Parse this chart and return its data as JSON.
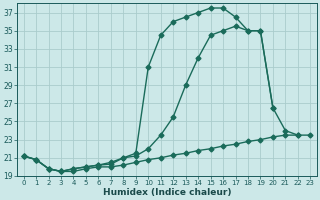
{
  "xlabel": "Humidex (Indice chaleur)",
  "bg_color": "#cce8e8",
  "grid_color": "#aacccc",
  "line_color": "#1a6b5a",
  "xlim": [
    -0.5,
    23.5
  ],
  "ylim": [
    19,
    38
  ],
  "xticks": [
    0,
    1,
    2,
    3,
    4,
    5,
    6,
    7,
    8,
    9,
    10,
    11,
    12,
    13,
    14,
    15,
    16,
    17,
    18,
    19,
    20,
    21,
    22,
    23
  ],
  "yticks": [
    19,
    21,
    23,
    25,
    27,
    29,
    31,
    33,
    35,
    37
  ],
  "curve1_x": [
    0,
    1,
    2,
    3,
    4,
    5,
    6,
    7,
    8,
    9,
    10,
    11,
    12,
    13,
    14,
    15,
    16,
    17,
    18,
    19,
    20,
    21,
    22,
    23
  ],
  "curve1_y": [
    21.2,
    20.8,
    19.8,
    19.5,
    19.5,
    19.8,
    20.0,
    20.0,
    20.2,
    20.5,
    20.8,
    21.0,
    21.3,
    21.5,
    21.8,
    22.0,
    22.3,
    22.5,
    22.8,
    23.0,
    23.3,
    23.5,
    23.5,
    23.5
  ],
  "curve2_x": [
    0,
    1,
    2,
    3,
    4,
    5,
    6,
    7,
    8,
    9,
    10,
    11,
    12,
    13,
    14,
    15,
    16,
    17,
    18,
    19,
    20,
    21,
    22,
    23
  ],
  "curve2_y": [
    21.2,
    20.8,
    19.8,
    19.5,
    19.8,
    20.0,
    20.2,
    20.3,
    21.0,
    21.2,
    22.0,
    23.5,
    25.5,
    29.0,
    32.0,
    34.5,
    35.0,
    35.5,
    35.0,
    35.0,
    26.5,
    24.0,
    23.5,
    null
  ],
  "curve3_x": [
    0,
    1,
    2,
    3,
    4,
    5,
    6,
    7,
    8,
    9,
    10,
    11,
    12,
    13,
    14,
    15,
    16,
    17,
    18,
    19,
    20
  ],
  "curve3_y": [
    21.2,
    20.8,
    19.8,
    19.5,
    19.8,
    20.0,
    20.2,
    20.5,
    21.0,
    21.5,
    31.0,
    34.5,
    36.0,
    36.5,
    37.0,
    37.5,
    37.5,
    36.5,
    35.0,
    35.0,
    26.5
  ]
}
